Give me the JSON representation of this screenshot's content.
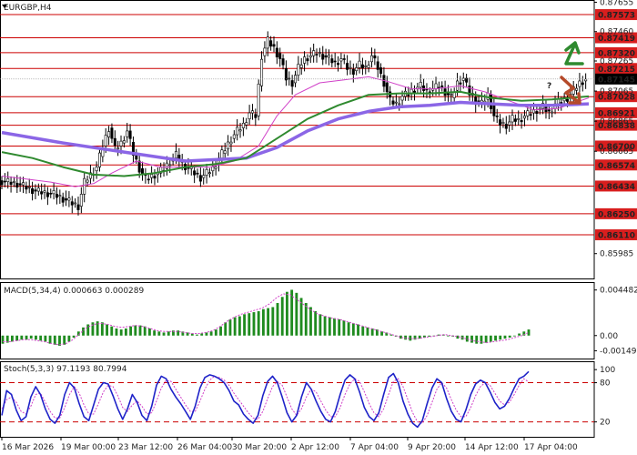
{
  "chart_data": [
    {
      "type": "candlestick",
      "title": "EURGBP,H4",
      "colors": {
        "up": "#2e8b2e",
        "down": "#2e8b2e",
        "wick": "#000000",
        "level_line": "#cc0000",
        "price_label_bg": "#d81e1e",
        "ma_violet": "#8b66e6",
        "ma_green": "#2f8a2f",
        "ma_magenta": "#d040c8",
        "current_label_bg": "#000000"
      },
      "ylim": [
        0.8582,
        0.8767
      ],
      "y_ticks": [
        "0.87655",
        "0.87460",
        "0.87265",
        "0.87065",
        "0.86865",
        "0.86665",
        "0.85985"
      ],
      "levels": [
        {
          "value": 0.87573,
          "label": "0.87573"
        },
        {
          "value": 0.87419,
          "label": "0.87419"
        },
        {
          "value": 0.8732,
          "label": "0.87320"
        },
        {
          "value": 0.87215,
          "label": "0.87215"
        },
        {
          "value": 0.87028,
          "label": "0.87028"
        },
        {
          "value": 0.86921,
          "label": "0.86921"
        },
        {
          "value": 0.86838,
          "label": "0.86838"
        },
        {
          "value": 0.867,
          "label": "0.86700"
        },
        {
          "value": 0.86574,
          "label": "0.86574"
        },
        {
          "value": 0.86434,
          "label": "0.86434"
        },
        {
          "value": 0.8625,
          "label": "0.86250"
        },
        {
          "value": 0.8611,
          "label": "0.86110"
        }
      ],
      "current_price": {
        "value": 0.87145,
        "label": "0.87145"
      },
      "x_ticks": [
        "16 Mar 2026",
        "19 Mar 00:00",
        "23 Mar 12:00",
        "26 Mar 04:00",
        "30 Mar 20:00",
        "2 Apr 12:00",
        "7 Apr 04:00",
        "9 Apr 20:00",
        "14 Apr 12:00",
        "17 Apr 04:00"
      ],
      "price_path": [
        [
          0,
          0.8647
        ],
        [
          6,
          0.8645
        ],
        [
          12,
          0.864
        ],
        [
          18,
          0.8638
        ],
        [
          22,
          0.8634
        ],
        [
          26,
          0.863
        ],
        [
          28,
          0.8646
        ],
        [
          32,
          0.8656
        ],
        [
          34,
          0.867
        ],
        [
          36,
          0.8682
        ],
        [
          38,
          0.8668
        ],
        [
          40,
          0.8672
        ],
        [
          42,
          0.868
        ],
        [
          44,
          0.8665
        ],
        [
          46,
          0.8655
        ],
        [
          48,
          0.8648
        ],
        [
          50,
          0.865
        ],
        [
          52,
          0.8652
        ],
        [
          54,
          0.8655
        ],
        [
          56,
          0.866
        ],
        [
          58,
          0.8664
        ],
        [
          60,
          0.8658
        ],
        [
          62,
          0.8655
        ],
        [
          64,
          0.8652
        ],
        [
          66,
          0.8649
        ],
        [
          68,
          0.8652
        ],
        [
          70,
          0.8655
        ],
        [
          72,
          0.8662
        ],
        [
          74,
          0.8668
        ],
        [
          76,
          0.8675
        ],
        [
          78,
          0.868
        ],
        [
          80,
          0.8684
        ],
        [
          82,
          0.8692
        ],
        [
          84,
          0.869
        ],
        [
          86,
          0.873
        ],
        [
          88,
          0.874
        ],
        [
          90,
          0.8735
        ],
        [
          92,
          0.8728
        ],
        [
          94,
          0.8715
        ],
        [
          96,
          0.8712
        ],
        [
          98,
          0.8722
        ],
        [
          100,
          0.8728
        ],
        [
          102,
          0.873
        ],
        [
          104,
          0.8732
        ],
        [
          106,
          0.873
        ],
        [
          108,
          0.8728
        ],
        [
          110,
          0.8725
        ],
        [
          112,
          0.8728
        ],
        [
          114,
          0.8722
        ],
        [
          116,
          0.872
        ],
        [
          118,
          0.8724
        ],
        [
          120,
          0.8722
        ],
        [
          122,
          0.873
        ],
        [
          124,
          0.8722
        ],
        [
          126,
          0.8712
        ],
        [
          128,
          0.87
        ],
        [
          130,
          0.8698
        ],
        [
          132,
          0.8703
        ],
        [
          134,
          0.8705
        ],
        [
          136,
          0.8708
        ],
        [
          138,
          0.871
        ],
        [
          140,
          0.8706
        ],
        [
          142,
          0.8708
        ],
        [
          144,
          0.871
        ],
        [
          146,
          0.8706
        ],
        [
          148,
          0.8702
        ],
        [
          150,
          0.8712
        ],
        [
          152,
          0.8715
        ],
        [
          154,
          0.8705
        ],
        [
          156,
          0.87
        ],
        [
          158,
          0.8698
        ],
        [
          160,
          0.8704
        ],
        [
          162,
          0.869
        ],
        [
          164,
          0.8685
        ],
        [
          166,
          0.8684
        ],
        [
          168,
          0.8688
        ],
        [
          170,
          0.8687
        ],
        [
          172,
          0.869
        ],
        [
          174,
          0.8692
        ],
        [
          176,
          0.8694
        ],
        [
          178,
          0.8696
        ],
        [
          180,
          0.8692
        ],
        [
          182,
          0.8698
        ],
        [
          184,
          0.87
        ],
        [
          186,
          0.8702
        ],
        [
          188,
          0.8707
        ],
        [
          190,
          0.8712
        ],
        [
          192,
          0.87145
        ]
      ],
      "ma_violet": [
        [
          0,
          0.8679
        ],
        [
          20,
          0.8672
        ],
        [
          40,
          0.8666
        ],
        [
          60,
          0.866
        ],
        [
          80,
          0.8662
        ],
        [
          90,
          0.8669
        ],
        [
          100,
          0.868
        ],
        [
          110,
          0.8688
        ],
        [
          120,
          0.8693
        ],
        [
          130,
          0.8696
        ],
        [
          140,
          0.8697
        ],
        [
          150,
          0.8699
        ],
        [
          160,
          0.8698
        ],
        [
          170,
          0.8697
        ],
        [
          180,
          0.8697
        ],
        [
          192,
          0.8698
        ]
      ],
      "ma_green": [
        [
          0,
          0.8666
        ],
        [
          10,
          0.8662
        ],
        [
          20,
          0.8656
        ],
        [
          30,
          0.8651
        ],
        [
          40,
          0.865
        ],
        [
          50,
          0.8652
        ],
        [
          60,
          0.8656
        ],
        [
          70,
          0.8658
        ],
        [
          80,
          0.8662
        ],
        [
          90,
          0.8675
        ],
        [
          100,
          0.8688
        ],
        [
          110,
          0.8697
        ],
        [
          120,
          0.8704
        ],
        [
          130,
          0.8705
        ],
        [
          140,
          0.8705
        ],
        [
          150,
          0.8706
        ],
        [
          160,
          0.8702
        ],
        [
          170,
          0.87
        ],
        [
          180,
          0.8701
        ],
        [
          192,
          0.8703
        ]
      ],
      "ma_magenta": [
        [
          0,
          0.865
        ],
        [
          8,
          0.8648
        ],
        [
          16,
          0.8646
        ],
        [
          24,
          0.8643
        ],
        [
          30,
          0.8645
        ],
        [
          36,
          0.8652
        ],
        [
          44,
          0.866
        ],
        [
          52,
          0.8656
        ],
        [
          60,
          0.8656
        ],
        [
          68,
          0.8656
        ],
        [
          76,
          0.866
        ],
        [
          84,
          0.867
        ],
        [
          90,
          0.869
        ],
        [
          96,
          0.8704
        ],
        [
          104,
          0.8712
        ],
        [
          112,
          0.8714
        ],
        [
          120,
          0.8716
        ],
        [
          126,
          0.8713
        ],
        [
          134,
          0.8708
        ],
        [
          142,
          0.8708
        ],
        [
          150,
          0.871
        ],
        [
          158,
          0.8706
        ],
        [
          166,
          0.87
        ],
        [
          174,
          0.8694
        ],
        [
          182,
          0.8695
        ],
        [
          192,
          0.8702
        ]
      ],
      "forecast_markers": [
        {
          "type": "up-arrow",
          "color": "#2f8a2f"
        },
        {
          "type": "question-mark",
          "label": "?",
          "color": "#b54a2a"
        },
        {
          "type": "down-arrow",
          "color": "#b54a2a"
        }
      ]
    },
    {
      "type": "bar",
      "title": "MACD(5,34,4) 0.000663 0.000289",
      "ylim": [
        -0.0019,
        0.0049
      ],
      "y_ticks": [
        "0.004482",
        "0.00",
        "-0.001492"
      ],
      "histogram_color": "#1f8b1f",
      "signal_color": "#d040c8",
      "histogram": [
        -0.0008,
        -0.0007,
        -0.0006,
        -0.0005,
        -0.0004,
        -0.0004,
        -0.0003,
        -0.0004,
        -0.0005,
        -0.0006,
        -0.0008,
        -0.0009,
        -0.001,
        -0.0009,
        -0.0006,
        -0.0002,
        0.0004,
        0.0008,
        0.0011,
        0.0013,
        0.0014,
        0.0013,
        0.0011,
        0.0009,
        0.0007,
        0.0006,
        0.0007,
        0.0009,
        0.001,
        0.001,
        0.0009,
        0.0007,
        0.0005,
        0.0004,
        0.0003,
        0.0004,
        0.0005,
        0.0005,
        0.0004,
        0.0003,
        0.0002,
        0.0001,
        0.0002,
        0.0003,
        0.0004,
        0.0006,
        0.0009,
        0.0013,
        0.0016,
        0.0018,
        0.0019,
        0.0021,
        0.0022,
        0.0023,
        0.0024,
        0.0026,
        0.0027,
        0.0028,
        0.0032,
        0.0038,
        0.0043,
        0.0045,
        0.0042,
        0.0037,
        0.0032,
        0.0028,
        0.0024,
        0.0021,
        0.0019,
        0.0018,
        0.0017,
        0.0016,
        0.0015,
        0.0013,
        0.0012,
        0.0011,
        0.0009,
        0.0008,
        0.0007,
        0.0006,
        0.0004,
        0.0003,
        0.0001,
        -0.0001,
        -0.0003,
        -0.0004,
        -0.0005,
        -0.0004,
        -0.0003,
        -0.0002,
        -0.0001,
        0.0,
        0.0001,
        0.0001,
        0.0,
        -0.0001,
        -0.0003,
        -0.0004,
        -0.0006,
        -0.0007,
        -0.0008,
        -0.0008,
        -0.0007,
        -0.0006,
        -0.0005,
        -0.0004,
        -0.0003,
        -0.0002,
        0.0,
        0.0002,
        0.0004,
        0.0006
      ],
      "signal": [
        -0.0006,
        -0.0006,
        -0.0005,
        -0.0004,
        -0.0004,
        -0.0005,
        -0.0006,
        -0.0008,
        -0.0009,
        -0.0008,
        -0.0004,
        0.0002,
        0.0008,
        0.0011,
        0.0012,
        0.0011,
        0.0009,
        0.0008,
        0.0009,
        0.001,
        0.0009,
        0.0007,
        0.0005,
        0.0004,
        0.0004,
        0.0004,
        0.0003,
        0.0002,
        0.0002,
        0.0003,
        0.0005,
        0.0009,
        0.0014,
        0.0018,
        0.0021,
        0.0023,
        0.0025,
        0.0027,
        0.0031,
        0.0037,
        0.0041,
        0.004,
        0.0035,
        0.003,
        0.0025,
        0.0021,
        0.0019,
        0.0017,
        0.0016,
        0.0014,
        0.0012,
        0.001,
        0.0008,
        0.0006,
        0.0004,
        0.0002,
        0.0,
        -0.0002,
        -0.0003,
        -0.0003,
        -0.0002,
        -0.0001,
        0.0,
        0.0001,
        0.0,
        -0.0001,
        -0.0003,
        -0.0005,
        -0.0006,
        -0.0007,
        -0.0006,
        -0.0005,
        -0.0004,
        -0.0002,
        0.0,
        0.0003
      ]
    },
    {
      "type": "line",
      "title": "Stoch(5,3,3) 97.1193 80.7994",
      "ylim": [
        0,
        110
      ],
      "y_ticks": [
        "100",
        "80",
        "20"
      ],
      "levels": [
        80,
        20
      ],
      "main_color": "#1e22c8",
      "signal_color": "#d040c8",
      "main": [
        30,
        68,
        62,
        38,
        22,
        28,
        58,
        74,
        62,
        40,
        24,
        18,
        30,
        62,
        80,
        72,
        48,
        28,
        22,
        46,
        70,
        80,
        78,
        60,
        40,
        24,
        40,
        62,
        50,
        30,
        22,
        44,
        76,
        90,
        86,
        70,
        58,
        48,
        36,
        24,
        44,
        72,
        88,
        92,
        90,
        86,
        80,
        68,
        52,
        46,
        32,
        24,
        18,
        30,
        60,
        82,
        90,
        80,
        58,
        34,
        20,
        30,
        58,
        80,
        70,
        52,
        36,
        24,
        20,
        36,
        62,
        84,
        92,
        86,
        66,
        42,
        28,
        22,
        34,
        62,
        88,
        94,
        80,
        52,
        32,
        18,
        12,
        22,
        48,
        72,
        86,
        80,
        56,
        36,
        24,
        20,
        38,
        62,
        78,
        84,
        80,
        66,
        50,
        40,
        44,
        56,
        72,
        86,
        90,
        97
      ],
      "signal": [
        40,
        54,
        58,
        50,
        36,
        32,
        44,
        62,
        64,
        50,
        36,
        26,
        26,
        42,
        62,
        74,
        64,
        46,
        32,
        32,
        48,
        66,
        76,
        74,
        60,
        42,
        36,
        46,
        52,
        44,
        32,
        34,
        52,
        72,
        84,
        82,
        70,
        58,
        46,
        36,
        36,
        52,
        70,
        84,
        90,
        88,
        84,
        76,
        64,
        54,
        44,
        34,
        26,
        24,
        36,
        56,
        74,
        82,
        76,
        58,
        40,
        30,
        40,
        58,
        70,
        66,
        52,
        38,
        28,
        28,
        42,
        62,
        78,
        86,
        82,
        66,
        48,
        34,
        28,
        40,
        62,
        82,
        86,
        74,
        54,
        34,
        20,
        18,
        30,
        50,
        70,
        80,
        72,
        54,
        38,
        28,
        28,
        42,
        60,
        74,
        80,
        76,
        64,
        52,
        46,
        50,
        62,
        76,
        86,
        81
      ]
    }
  ]
}
